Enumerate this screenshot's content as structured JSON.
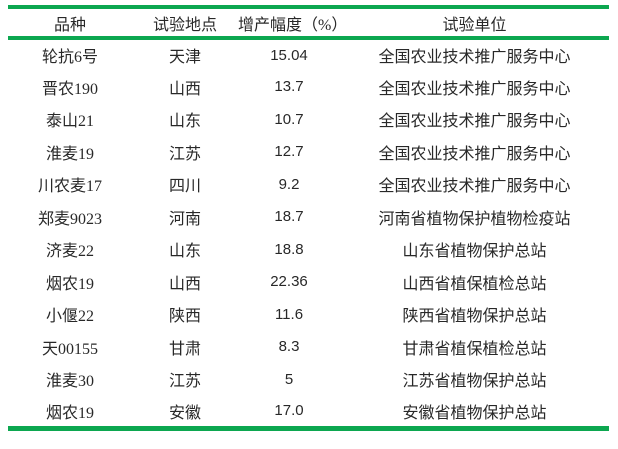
{
  "colors": {
    "accent_green": "#0ca750",
    "text": "#282828",
    "background": "#ffffff"
  },
  "table": {
    "headers": {
      "variety": "品种",
      "location": "试验地点",
      "increase": "增产幅度（%）",
      "unit": "试验单位"
    },
    "rows": [
      {
        "variety": "轮抗6号",
        "location": "天津",
        "increase": "15.04",
        "unit": "全国农业技术推广服务中心"
      },
      {
        "variety": "晋农190",
        "location": "山西",
        "increase": "13.7",
        "unit": "全国农业技术推广服务中心"
      },
      {
        "variety": "泰山21",
        "location": "山东",
        "increase": "10.7",
        "unit": "全国农业技术推广服务中心"
      },
      {
        "variety": "淮麦19",
        "location": "江苏",
        "increase": "12.7",
        "unit": "全国农业技术推广服务中心"
      },
      {
        "variety": "川农麦17",
        "location": "四川",
        "increase": "9.2",
        "unit": "全国农业技术推广服务中心"
      },
      {
        "variety": "郑麦9023",
        "location": "河南",
        "increase": "18.7",
        "unit": "河南省植物保护植物检疫站"
      },
      {
        "variety": "济麦22",
        "location": "山东",
        "increase": "18.8",
        "unit": "山东省植物保护总站"
      },
      {
        "variety": "烟农19",
        "location": "山西",
        "increase": "22.36",
        "unit": "山西省植保植检总站"
      },
      {
        "variety": "小偃22",
        "location": "陕西",
        "increase": "11.6",
        "unit": "陕西省植物保护总站"
      },
      {
        "variety": "天00155",
        "location": "甘肃",
        "increase": "8.3",
        "unit": "甘肃省植保植检总站"
      },
      {
        "variety": "淮麦30",
        "location": "江苏",
        "increase": "5",
        "unit": "江苏省植物保护总站"
      },
      {
        "variety": "烟农19",
        "location": "安徽",
        "increase": "17.0",
        "unit": "安徽省植物保护总站"
      }
    ]
  }
}
